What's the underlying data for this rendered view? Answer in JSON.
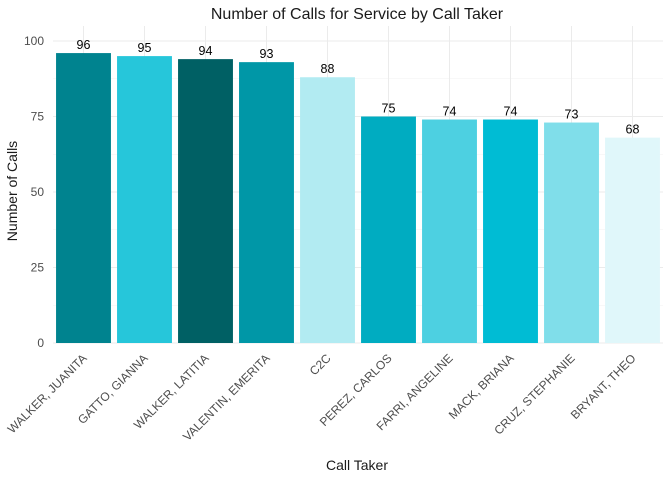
{
  "chart_data": {
    "type": "bar",
    "title": "Number of Calls for Service by Call Taker",
    "xlabel": "Call Taker",
    "ylabel": "Number of Calls",
    "categories": [
      "WALKER, JUANITA",
      "GATTO, GIANNA",
      "WALKER, LATITIA",
      "VALENTIN, EMERITA",
      "C2C",
      "PEREZ, CARLOS",
      "FARRI, ANGELINE",
      "MACK, BRIANA",
      "CRUZ, STEPHANIE",
      "BRYANT, THEO"
    ],
    "values": [
      96,
      95,
      94,
      93,
      88,
      75,
      74,
      74,
      73,
      68
    ],
    "bar_colors": [
      "#00838F",
      "#26C6DA",
      "#006064",
      "#0097A7",
      "#B2EBF2",
      "#00ACC1",
      "#4DD0E1",
      "#00BCD4",
      "#80DEEA",
      "#E0F7FA"
    ],
    "ylim": [
      0,
      100
    ],
    "yticks": [
      0,
      25,
      50,
      75,
      100
    ],
    "grid": true,
    "legend": "none"
  }
}
